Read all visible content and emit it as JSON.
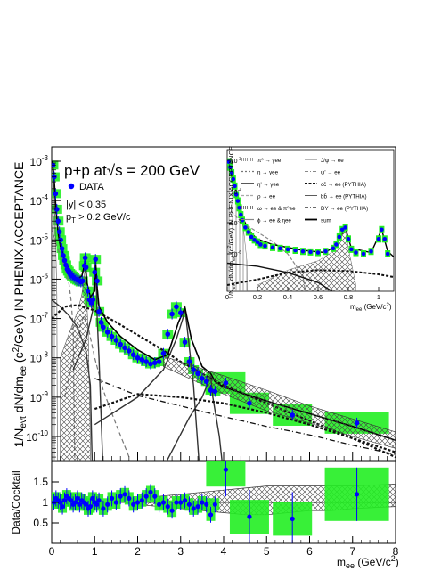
{
  "chart_data": [
    {
      "type": "scatter",
      "panel": "main",
      "ylabel": "1/N_evt dN/dm_ee (c²/GeV) IN PHENIX ACCEPTANCE",
      "yscale": "log",
      "xlim": [
        0,
        8
      ],
      "ylim": [
        1e-11,
        0.002
      ],
      "y_ticks": [
        "10",
        "10",
        "10",
        "10",
        "10",
        "10",
        "10",
        "10"
      ],
      "y_tick_exps": [
        "-3",
        "-4",
        "-5",
        "-6",
        "-7",
        "-8",
        "-9",
        "-10"
      ],
      "annotations": {
        "system": "p+p at√s = 200 GeV",
        "legend_data": "DATA",
        "cut1": "|y| < 0.35",
        "cut2": "p_T > 0.2 GeV/c"
      },
      "data_series": {
        "name": "DATA",
        "x": [
          0.03,
          0.06,
          0.09,
          0.12,
          0.15,
          0.18,
          0.21,
          0.24,
          0.27,
          0.3,
          0.33,
          0.36,
          0.39,
          0.42,
          0.45,
          0.48,
          0.52,
          0.56,
          0.6,
          0.64,
          0.68,
          0.72,
          0.76,
          0.78,
          0.8,
          0.84,
          0.88,
          0.92,
          0.96,
          1.0,
          1.02,
          1.06,
          1.1,
          1.15,
          1.2,
          1.3,
          1.4,
          1.5,
          1.6,
          1.7,
          1.8,
          1.9,
          2.0,
          2.1,
          2.2,
          2.3,
          2.4,
          2.5,
          2.6,
          2.7,
          2.8,
          2.9,
          3.0,
          3.1,
          3.2,
          3.3,
          3.4,
          3.5,
          3.6,
          3.7,
          3.8,
          4.05,
          4.6,
          5.6,
          7.1
        ],
        "y": [
          0.0008,
          0.0004,
          0.00015,
          6e-05,
          3e-05,
          1.6e-05,
          1e-05,
          6e-06,
          4e-06,
          3e-06,
          2.3e-06,
          1.8e-06,
          1.6e-06,
          1.4e-06,
          1.3e-06,
          1.2e-06,
          1.1e-06,
          1e-06,
          9.5e-07,
          9e-07,
          8.5e-07,
          9e-07,
          2.2e-06,
          3.5e-06,
          2e-06,
          5e-07,
          3e-07,
          2.5e-07,
          3e-07,
          1.5e-06,
          3.2e-06,
          9e-07,
          1.5e-07,
          8e-08,
          6e-08,
          4.5e-08,
          3.5e-08,
          2.8e-08,
          2.2e-08,
          1.8e-08,
          1.5e-08,
          1.2e-08,
          1e-08,
          9e-09,
          8e-09,
          7e-09,
          7.5e-09,
          8e-09,
          1.3e-08,
          4e-08,
          1.3e-07,
          2e-07,
          1.4e-07,
          2.5e-08,
          8e-09,
          5e-09,
          4e-09,
          3e-09,
          2.5e-09,
          1.5e-09,
          1.4e-09,
          2.3e-09,
          7e-10,
          3.5e-10,
          2.2e-10
        ]
      },
      "cocktail_components": [
        {
          "name": "pi0 Dalitz",
          "style": "hatched",
          "x": [
            0.0,
            0.02,
            0.05,
            0.08,
            0.1,
            0.12,
            0.135
          ],
          "y": [
            0.001,
            0.0006,
            0.0002,
            3e-05,
            4e-06,
            4e-07,
            1e-11
          ]
        },
        {
          "name": "eta Dalitz",
          "style": "dashed",
          "x": [
            0.0,
            0.1,
            0.2,
            0.3,
            0.4,
            0.45,
            0.5,
            0.54
          ],
          "y": [
            2e-05,
            8e-06,
            4e-06,
            2e-06,
            8e-07,
            3e-07,
            6e-08,
            1e-11
          ]
        },
        {
          "name": "eta' Dalitz",
          "style": "solid",
          "x": [
            0.0,
            0.2,
            0.4,
            0.6,
            0.8,
            0.9,
            0.95
          ],
          "y": [
            3e-07,
            2e-07,
            1.2e-07,
            6e-08,
            1.5e-08,
            2e-09,
            1e-11
          ]
        },
        {
          "name": "rho",
          "style": "dashed",
          "x": [
            0.3,
            0.5,
            0.65,
            0.75,
            0.85,
            1.0,
            1.2,
            1.5,
            1.8
          ],
          "y": [
            1e-09,
            1e-08,
            6e-08,
            1.2e-07,
            6e-08,
            1e-08,
            1.5e-09,
            2e-10,
            3e-11
          ]
        },
        {
          "name": "omega",
          "style": "hatched",
          "x": [
            0.2,
            0.4,
            0.6,
            0.7,
            0.75,
            0.78,
            0.8,
            0.85,
            0.9
          ],
          "y": [
            1e-08,
            4e-08,
            1.5e-07,
            4e-07,
            1e-06,
            2e-06,
            6e-07,
            5e-08,
            1e-10
          ]
        },
        {
          "name": "phi",
          "style": "solid",
          "x": [
            0.5,
            0.8,
            0.95,
            1.01,
            1.03,
            1.06,
            1.1,
            1.2
          ],
          "y": [
            5e-09,
            3e-08,
            1.5e-07,
            2e-06,
            1.5e-06,
            1e-07,
            1e-08,
            1e-11
          ]
        },
        {
          "name": "J/psi",
          "style": "solid",
          "x": [
            1.0,
            2.0,
            2.6,
            2.9,
            3.05,
            3.1,
            3.15,
            3.3,
            3.45
          ],
          "y": [
            2e-10,
            1e-09,
            5e-09,
            3e-08,
            1e-07,
            1.8e-07,
            6e-08,
            2e-09,
            1e-11
          ]
        },
        {
          "name": "psi'",
          "style": "solid",
          "x": [
            2.5,
            3.2,
            3.5,
            3.65,
            3.7,
            3.75,
            3.9,
            4.0
          ],
          "y": [
            1e-11,
            3e-10,
            1e-09,
            2.5e-09,
            3.5e-09,
            1e-09,
            1e-10,
            1e-11
          ]
        },
        {
          "name": "ccbar",
          "style": "dotted",
          "x": [
            0.0,
            0.3,
            0.6,
            1.0,
            1.5,
            2.0,
            2.5,
            3.0,
            4.0,
            5.0,
            6.0,
            7.0,
            8.0
          ],
          "y": [
            1e-07,
            2e-07,
            2.2e-07,
            1.6e-07,
            8e-08,
            3.8e-08,
            1.8e-08,
            8e-09,
            2e-09,
            7e-10,
            2.5e-10,
            9e-11,
            3e-11
          ]
        },
        {
          "name": "bbbar",
          "style": "dotted",
          "x": [
            1.0,
            2.0,
            3.0,
            4.0,
            5.0,
            6.0,
            7.0,
            8.0
          ],
          "y": [
            5e-10,
            1.2e-09,
            1e-09,
            7e-10,
            4e-10,
            2e-10,
            9e-11,
            4e-11
          ]
        },
        {
          "name": "DY",
          "style": "dashdot",
          "x": [
            1.0,
            2.0,
            3.0,
            4.0,
            5.0,
            6.0,
            7.0,
            8.0
          ],
          "y": [
            3e-09,
            1.1e-09,
            6e-10,
            3.2e-10,
            1.8e-10,
            1.1e-10,
            6e-11,
            3.5e-11
          ]
        },
        {
          "name": "sum",
          "style": "solid",
          "x": [
            0.0,
            0.05,
            0.1,
            0.15,
            0.2,
            0.3,
            0.4,
            0.5,
            0.6,
            0.7,
            0.75,
            0.78,
            0.82,
            0.9,
            1.0,
            1.02,
            1.06,
            1.1,
            1.3,
            1.6,
            2.0,
            2.4,
            2.7,
            2.95,
            3.1,
            3.25,
            3.5,
            3.7,
            3.8,
            4.0,
            5.0,
            6.0,
            7.0,
            8.0
          ],
          "y": [
            0.001,
            0.0005,
            6e-05,
            1.5e-05,
            7e-06,
            3e-06,
            1.8e-06,
            1.3e-06,
            1e-06,
            1.2e-06,
            2e-06,
            3e-06,
            8e-07,
            3.5e-07,
            5e-07,
            3e-06,
            6e-07,
            2e-07,
            8e-08,
            3.5e-08,
            1.6e-08,
            9e-09,
            1.2e-08,
            8e-08,
            1.9e-07,
            3e-08,
            6e-09,
            4e-09,
            2.5e-09,
            1.8e-09,
            8e-10,
            3.8e-10,
            1.8e-10,
            8e-11
          ]
        }
      ]
    },
    {
      "type": "scatter",
      "panel": "ratio",
      "xlabel": "m_ee (GeV/c²)",
      "ylabel": "Data/Cocktail",
      "xlim": [
        0,
        8
      ],
      "ylim": [
        0,
        2
      ],
      "x_ticks": [
        "0",
        "1",
        "2",
        "3",
        "4",
        "5",
        "6",
        "7",
        "8"
      ],
      "y_ticks": [
        "0.5",
        "1",
        "1.5"
      ],
      "x": [
        0.05,
        0.1,
        0.15,
        0.2,
        0.25,
        0.3,
        0.35,
        0.4,
        0.45,
        0.5,
        0.55,
        0.6,
        0.65,
        0.7,
        0.75,
        0.8,
        0.85,
        0.9,
        0.95,
        1.0,
        1.05,
        1.1,
        1.2,
        1.3,
        1.4,
        1.5,
        1.6,
        1.7,
        1.8,
        1.9,
        2.0,
        2.1,
        2.2,
        2.3,
        2.4,
        2.5,
        2.6,
        2.7,
        2.8,
        2.9,
        3.0,
        3.1,
        3.2,
        3.3,
        3.4,
        3.5,
        3.6,
        3.7,
        3.8,
        4.05,
        4.6,
        5.6,
        7.1
      ],
      "y": [
        1.0,
        1.1,
        1.05,
        1.0,
        0.9,
        1.05,
        1.15,
        1.1,
        1.05,
        0.95,
        1.0,
        1.1,
        0.95,
        1.05,
        1.0,
        0.95,
        0.85,
        0.9,
        1.1,
        1.0,
        0.95,
        1.05,
        0.85,
        0.95,
        1.1,
        1.0,
        1.15,
        1.2,
        1.1,
        0.95,
        1.0,
        1.05,
        1.15,
        1.25,
        1.15,
        0.95,
        1.0,
        0.9,
        0.8,
        1.0,
        1.0,
        1.05,
        0.95,
        0.85,
        0.9,
        1.0,
        0.95,
        0.7,
        0.95,
        1.8,
        0.65,
        0.6,
        1.2
      ],
      "band_upper": [
        1.1,
        1.2,
        1.3,
        1.35,
        1.4,
        1.4,
        1.4,
        1.4,
        1.4,
        1.45
      ],
      "band_lower": [
        0.95,
        0.85,
        0.75,
        0.7,
        0.7,
        0.75,
        0.8,
        0.8,
        0.85,
        0.9
      ],
      "band_x": [
        2.0,
        3.0,
        4.0,
        4.5,
        5.0,
        5.5,
        6.0,
        6.5,
        7.0,
        8.0
      ]
    }
  ],
  "inset": {
    "xlabel": "m_ee (GeV/c²)",
    "ylabel": "1/N_evt dN/dm_ee (c²/GeV) IN PHENIX ACCEPTANCE",
    "x_ticks": [
      "0",
      "0.2",
      "0.4",
      "0.6",
      "0.8",
      "1"
    ],
    "y_ticks": [
      "10",
      "10",
      "10",
      "10"
    ],
    "y_tick_exps": [
      "-3",
      "-4",
      "-5",
      "-6"
    ],
    "legend": [
      {
        "label": "π⁰ → γee",
        "style": "hatched"
      },
      {
        "label": "J/ψ → ee",
        "style": "solid-gray"
      },
      {
        "label": "η → γee",
        "style": "dashed"
      },
      {
        "label": "ψ' → ee",
        "style": "dashdot-light"
      },
      {
        "label": "η' → γee",
        "style": "solid"
      },
      {
        "label": "cc̄ → ee (PYTHIA)",
        "style": "dotted"
      },
      {
        "label": "ρ → ee",
        "style": "dashed-light"
      },
      {
        "label": "bb̄ → ee (PYTHIA)",
        "style": "solid-thin"
      },
      {
        "label": "ω → ee & π⁰ee",
        "style": "hatched-dense"
      },
      {
        "label": "DY → ee (PYTHIA)",
        "style": "dashdot"
      },
      {
        "label": "ϕ → ee & ηee",
        "style": "solid-gray"
      },
      {
        "label": "sum",
        "style": "solid-thick"
      }
    ],
    "data_x": [
      0.01,
      0.02,
      0.03,
      0.04,
      0.05,
      0.06,
      0.07,
      0.08,
      0.09,
      0.1,
      0.12,
      0.14,
      0.16,
      0.18,
      0.2,
      0.22,
      0.25,
      0.3,
      0.35,
      0.4,
      0.45,
      0.5,
      0.55,
      0.6,
      0.65,
      0.7,
      0.72,
      0.74,
      0.76,
      0.78,
      0.8,
      0.82,
      0.85,
      0.9,
      0.95,
      1.0,
      1.02,
      1.04,
      1.06
    ],
    "data_y": [
      0.0009,
      0.0006,
      0.0004,
      0.00025,
      0.00015,
      8e-05,
      5e-05,
      3e-05,
      1.8e-05,
      1.2e-05,
      7e-06,
      5e-06,
      3.5e-06,
      2.8e-06,
      2.4e-06,
      2e-06,
      1.8e-06,
      1.6e-06,
      1.5e-06,
      1.4e-06,
      1.3e-06,
      1.2e-06,
      1.15e-06,
      1.1e-06,
      1.2e-06,
      1.5e-06,
      2e-06,
      3.5e-06,
      6e-06,
      7e-06,
      3e-06,
      1.4e-06,
      1.1e-06,
      1e-06,
      1.2e-06,
      3e-06,
      6e-06,
      3e-06,
      1e-06
    ]
  }
}
